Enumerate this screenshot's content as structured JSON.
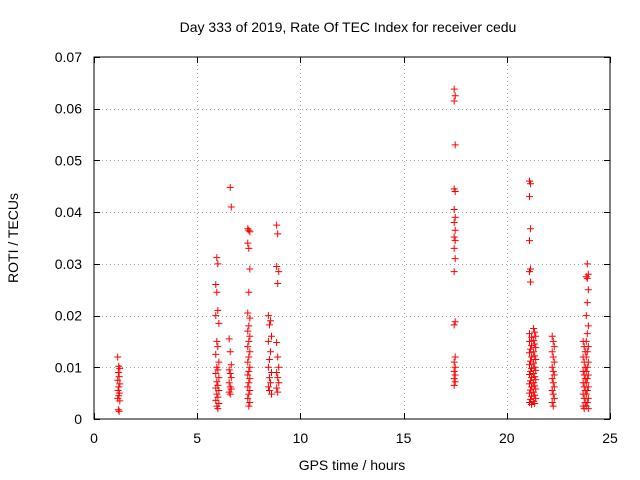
{
  "chart_data": {
    "type": "scatter",
    "title": "Day 333 of 2019, Rate Of TEC Index for receiver cedu",
    "xlabel": "GPS time / hours",
    "ylabel": "ROTI / TECUs",
    "xlim": [
      0,
      25
    ],
    "ylim": [
      0,
      0.07
    ],
    "xticks": [
      0,
      5,
      10,
      15,
      20,
      25
    ],
    "xtick_labels": [
      "0",
      "5",
      "10",
      "15",
      "20",
      "25"
    ],
    "yticks": [
      0,
      0.01,
      0.02,
      0.03,
      0.04,
      0.05,
      0.06,
      0.07
    ],
    "ytick_labels": [
      "0",
      "0.01",
      "0.02",
      "0.03",
      "0.04",
      "0.05",
      "0.06",
      "0.07"
    ],
    "grid": true,
    "marker": "+",
    "color": "#ff0000",
    "series": [
      {
        "name": "ROTI",
        "points": [
          [
            1.15,
            0.012
          ],
          [
            1.2,
            0.0102
          ],
          [
            1.25,
            0.0098
          ],
          [
            1.18,
            0.009
          ],
          [
            1.22,
            0.0082
          ],
          [
            1.15,
            0.0075
          ],
          [
            1.25,
            0.0068
          ],
          [
            1.2,
            0.0062
          ],
          [
            1.17,
            0.0055
          ],
          [
            1.23,
            0.005
          ],
          [
            1.2,
            0.0045
          ],
          [
            1.15,
            0.004
          ],
          [
            1.25,
            0.0035
          ],
          [
            1.18,
            0.0018
          ],
          [
            1.22,
            0.0015
          ],
          [
            5.95,
            0.0312
          ],
          [
            6.0,
            0.03
          ],
          [
            5.9,
            0.026
          ],
          [
            5.95,
            0.0245
          ],
          [
            6.0,
            0.021
          ],
          [
            5.9,
            0.02
          ],
          [
            6.05,
            0.0185
          ],
          [
            5.95,
            0.015
          ],
          [
            6.0,
            0.014
          ],
          [
            5.9,
            0.0125
          ],
          [
            6.05,
            0.011
          ],
          [
            5.95,
            0.01
          ],
          [
            6.0,
            0.0095
          ],
          [
            5.9,
            0.0088
          ],
          [
            6.05,
            0.008
          ],
          [
            5.95,
            0.0072
          ],
          [
            6.0,
            0.0065
          ],
          [
            5.9,
            0.006
          ],
          [
            6.05,
            0.0055
          ],
          [
            5.95,
            0.0048
          ],
          [
            6.0,
            0.0042
          ],
          [
            5.9,
            0.0036
          ],
          [
            6.05,
            0.003
          ],
          [
            5.95,
            0.0025
          ],
          [
            6.0,
            0.002
          ],
          [
            6.6,
            0.0448
          ],
          [
            6.65,
            0.041
          ],
          [
            6.55,
            0.0155
          ],
          [
            6.6,
            0.013
          ],
          [
            6.65,
            0.0105
          ],
          [
            6.55,
            0.0095
          ],
          [
            6.6,
            0.0088
          ],
          [
            6.65,
            0.008
          ],
          [
            6.55,
            0.007
          ],
          [
            6.6,
            0.0062
          ],
          [
            6.65,
            0.0058
          ],
          [
            6.55,
            0.0052
          ],
          [
            6.6,
            0.0048
          ],
          [
            7.45,
            0.0368
          ],
          [
            7.5,
            0.0365
          ],
          [
            7.55,
            0.0362
          ],
          [
            7.45,
            0.034
          ],
          [
            7.5,
            0.033
          ],
          [
            7.55,
            0.029
          ],
          [
            7.5,
            0.0245
          ],
          [
            7.45,
            0.0205
          ],
          [
            7.55,
            0.0195
          ],
          [
            7.5,
            0.018
          ],
          [
            7.45,
            0.017
          ],
          [
            7.55,
            0.016
          ],
          [
            7.5,
            0.015
          ],
          [
            7.45,
            0.014
          ],
          [
            7.55,
            0.013
          ],
          [
            7.5,
            0.012
          ],
          [
            7.45,
            0.011
          ],
          [
            7.55,
            0.01
          ],
          [
            7.5,
            0.0092
          ],
          [
            7.45,
            0.0085
          ],
          [
            7.55,
            0.0078
          ],
          [
            7.5,
            0.007
          ],
          [
            7.45,
            0.0062
          ],
          [
            7.55,
            0.0055
          ],
          [
            7.5,
            0.0048
          ],
          [
            7.45,
            0.004
          ],
          [
            7.55,
            0.0032
          ],
          [
            7.5,
            0.0025
          ],
          [
            8.45,
            0.02
          ],
          [
            8.55,
            0.019
          ],
          [
            8.5,
            0.0182
          ],
          [
            8.6,
            0.016
          ],
          [
            8.45,
            0.015
          ],
          [
            8.55,
            0.013
          ],
          [
            8.5,
            0.0115
          ],
          [
            8.45,
            0.01
          ],
          [
            8.6,
            0.009
          ],
          [
            8.5,
            0.008
          ],
          [
            8.55,
            0.007
          ],
          [
            8.45,
            0.0062
          ],
          [
            8.5,
            0.0055
          ],
          [
            8.6,
            0.0048
          ],
          [
            8.85,
            0.0375
          ],
          [
            8.9,
            0.0358
          ],
          [
            8.85,
            0.0295
          ],
          [
            8.95,
            0.0285
          ],
          [
            8.9,
            0.0262
          ],
          [
            8.85,
            0.0148
          ],
          [
            8.9,
            0.012
          ],
          [
            8.95,
            0.01
          ],
          [
            8.85,
            0.009
          ],
          [
            8.9,
            0.008
          ],
          [
            8.95,
            0.007
          ],
          [
            8.85,
            0.006
          ],
          [
            8.9,
            0.0052
          ],
          [
            17.45,
            0.0638
          ],
          [
            17.5,
            0.0625
          ],
          [
            17.45,
            0.0615
          ],
          [
            17.5,
            0.053
          ],
          [
            17.45,
            0.0445
          ],
          [
            17.5,
            0.044
          ],
          [
            17.45,
            0.0405
          ],
          [
            17.5,
            0.039
          ],
          [
            17.45,
            0.038
          ],
          [
            17.5,
            0.0365
          ],
          [
            17.45,
            0.0352
          ],
          [
            17.5,
            0.0345
          ],
          [
            17.45,
            0.033
          ],
          [
            17.5,
            0.031
          ],
          [
            17.45,
            0.0285
          ],
          [
            17.5,
            0.0188
          ],
          [
            17.45,
            0.0182
          ],
          [
            17.5,
            0.012
          ],
          [
            17.45,
            0.011
          ],
          [
            17.5,
            0.01
          ],
          [
            17.45,
            0.0092
          ],
          [
            17.5,
            0.0085
          ],
          [
            17.45,
            0.0078
          ],
          [
            17.5,
            0.0072
          ],
          [
            17.45,
            0.0065
          ],
          [
            21.1,
            0.046
          ],
          [
            21.15,
            0.0455
          ],
          [
            21.1,
            0.043
          ],
          [
            21.15,
            0.0368
          ],
          [
            21.1,
            0.0345
          ],
          [
            21.15,
            0.029
          ],
          [
            21.1,
            0.0285
          ],
          [
            21.15,
            0.0265
          ],
          [
            21.1,
            0.0165
          ],
          [
            21.2,
            0.0158
          ],
          [
            21.1,
            0.015
          ],
          [
            21.2,
            0.0142
          ],
          [
            21.15,
            0.0135
          ],
          [
            21.1,
            0.0128
          ],
          [
            21.2,
            0.012
          ],
          [
            21.15,
            0.0112
          ],
          [
            21.1,
            0.0105
          ],
          [
            21.2,
            0.0098
          ],
          [
            21.15,
            0.0092
          ],
          [
            21.1,
            0.0086
          ],
          [
            21.2,
            0.008
          ],
          [
            21.15,
            0.0074
          ],
          [
            21.1,
            0.0068
          ],
          [
            21.2,
            0.0062
          ],
          [
            21.15,
            0.0056
          ],
          [
            21.1,
            0.005
          ],
          [
            21.2,
            0.0044
          ],
          [
            21.15,
            0.0038
          ],
          [
            21.1,
            0.0032
          ],
          [
            21.2,
            0.0028
          ],
          [
            21.3,
            0.0175
          ],
          [
            21.35,
            0.0168
          ],
          [
            21.4,
            0.016
          ],
          [
            21.3,
            0.0152
          ],
          [
            21.35,
            0.0145
          ],
          [
            21.4,
            0.0138
          ],
          [
            21.3,
            0.013
          ],
          [
            21.35,
            0.0122
          ],
          [
            21.4,
            0.0115
          ],
          [
            21.3,
            0.0108
          ],
          [
            21.35,
            0.01
          ],
          [
            21.4,
            0.0094
          ],
          [
            21.3,
            0.0088
          ],
          [
            21.35,
            0.0082
          ],
          [
            21.4,
            0.0076
          ],
          [
            21.3,
            0.007
          ],
          [
            21.35,
            0.0064
          ],
          [
            21.4,
            0.0058
          ],
          [
            21.3,
            0.0052
          ],
          [
            21.35,
            0.0046
          ],
          [
            21.4,
            0.004
          ],
          [
            21.3,
            0.0034
          ],
          [
            21.35,
            0.003
          ],
          [
            22.2,
            0.016
          ],
          [
            22.25,
            0.015
          ],
          [
            22.3,
            0.014
          ],
          [
            22.2,
            0.013
          ],
          [
            22.25,
            0.012
          ],
          [
            22.3,
            0.011
          ],
          [
            22.2,
            0.01
          ],
          [
            22.25,
            0.0092
          ],
          [
            22.3,
            0.0085
          ],
          [
            22.2,
            0.0078
          ],
          [
            22.25,
            0.007
          ],
          [
            22.3,
            0.0062
          ],
          [
            22.2,
            0.0055
          ],
          [
            22.25,
            0.0048
          ],
          [
            22.3,
            0.004
          ],
          [
            22.2,
            0.0032
          ],
          [
            22.25,
            0.0025
          ],
          [
            23.7,
            0.015
          ],
          [
            23.75,
            0.014
          ],
          [
            23.8,
            0.013
          ],
          [
            23.7,
            0.012
          ],
          [
            23.75,
            0.011
          ],
          [
            23.8,
            0.01
          ],
          [
            23.7,
            0.0092
          ],
          [
            23.75,
            0.0085
          ],
          [
            23.8,
            0.0078
          ],
          [
            23.7,
            0.007
          ],
          [
            23.75,
            0.0062
          ],
          [
            23.8,
            0.0055
          ],
          [
            23.7,
            0.0048
          ],
          [
            23.75,
            0.004
          ],
          [
            23.8,
            0.0032
          ],
          [
            23.7,
            0.0025
          ],
          [
            23.75,
            0.002
          ],
          [
            23.9,
            0.03
          ],
          [
            23.95,
            0.028
          ],
          [
            23.85,
            0.0275
          ],
          [
            23.9,
            0.0272
          ],
          [
            23.95,
            0.025
          ],
          [
            23.9,
            0.0225
          ],
          [
            23.85,
            0.02
          ],
          [
            23.95,
            0.018
          ],
          [
            23.9,
            0.0165
          ],
          [
            23.85,
            0.015
          ],
          [
            23.95,
            0.014
          ],
          [
            23.9,
            0.013
          ],
          [
            23.85,
            0.012
          ],
          [
            23.95,
            0.011
          ],
          [
            23.9,
            0.01
          ],
          [
            23.85,
            0.0092
          ],
          [
            23.95,
            0.0085
          ],
          [
            23.9,
            0.0078
          ],
          [
            23.85,
            0.007
          ],
          [
            23.95,
            0.0062
          ],
          [
            23.9,
            0.0055
          ],
          [
            23.85,
            0.0048
          ],
          [
            23.95,
            0.004
          ],
          [
            23.9,
            0.0032
          ],
          [
            23.85,
            0.0025
          ],
          [
            23.95,
            0.002
          ]
        ]
      }
    ]
  }
}
